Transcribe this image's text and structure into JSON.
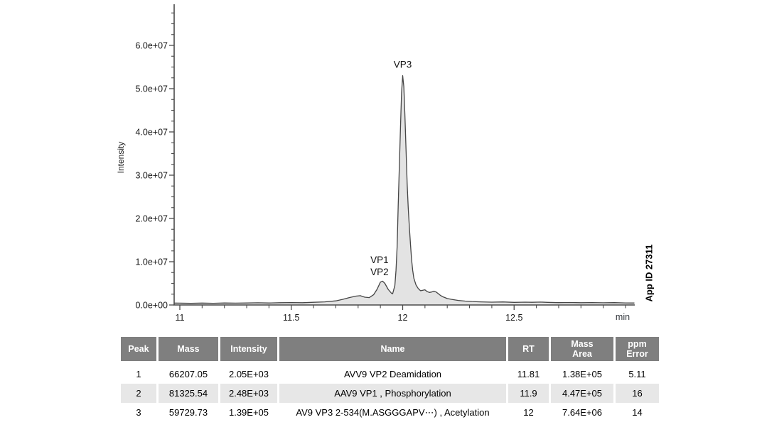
{
  "chart_data": {
    "type": "area",
    "title": "",
    "ylabel": "Intensity",
    "x_unit": "min",
    "side_label": "App ID 27311",
    "x_range": [
      11,
      13.05
    ],
    "y_range": [
      0,
      67500000.0
    ],
    "x_major_ticks": [
      11,
      11.5,
      12,
      12.5
    ],
    "x_major_labels": [
      "11",
      "11.5",
      "12",
      "12.5"
    ],
    "x_minor_step": 0.1,
    "y_major_ticks": [
      0,
      10000000.0,
      20000000.0,
      30000000.0,
      40000000.0,
      50000000.0,
      60000000.0
    ],
    "y_tick_labels": [
      "0.0e+00",
      "1.0e+07",
      "2.0e+07",
      "3.0e+07",
      "4.0e+07",
      "5.0e+07",
      "6.0e+07"
    ],
    "y_minor_step": 2500000.0,
    "grid": false,
    "legend": false,
    "colors": {
      "line": "#454545",
      "fill": "#e3e3e3",
      "axis": "#4a4a4a",
      "tick_text": "#1a1a1a"
    },
    "annotations": [
      {
        "text": "VP3",
        "x": 12.0,
        "y": 54800000.0
      },
      {
        "text": "VP1",
        "x": 11.896,
        "y": 9700000.0
      },
      {
        "text": "VP2",
        "x": 11.896,
        "y": 6900000.0
      }
    ],
    "series": [
      {
        "name": "chromatogram",
        "points": [
          [
            10.975,
            450000.0
          ],
          [
            11.0,
            420000.0
          ],
          [
            11.05,
            380000.0
          ],
          [
            11.1,
            450000.0
          ],
          [
            11.15,
            400000.0
          ],
          [
            11.2,
            460000.0
          ],
          [
            11.25,
            420000.0
          ],
          [
            11.3,
            460000.0
          ],
          [
            11.35,
            500000.0
          ],
          [
            11.4,
            460000.0
          ],
          [
            11.45,
            520000.0
          ],
          [
            11.5,
            560000.0
          ],
          [
            11.55,
            530000.0
          ],
          [
            11.6,
            620000.0
          ],
          [
            11.65,
            720000.0
          ],
          [
            11.7,
            950000.0
          ],
          [
            11.73,
            1300000.0
          ],
          [
            11.76,
            1700000.0
          ],
          [
            11.79,
            2050000.0
          ],
          [
            11.81,
            2150000.0
          ],
          [
            11.83,
            1800000.0
          ],
          [
            11.85,
            1700000.0
          ],
          [
            11.87,
            2400000.0
          ],
          [
            11.885,
            3600000.0
          ],
          [
            11.9,
            5300000.0
          ],
          [
            11.91,
            5500000.0
          ],
          [
            11.92,
            5000000.0
          ],
          [
            11.935,
            3600000.0
          ],
          [
            11.95,
            2700000.0
          ],
          [
            11.955,
            2600000.0
          ],
          [
            11.965,
            4500000.0
          ],
          [
            11.97,
            8000000.0
          ],
          [
            11.975,
            13500000.0
          ],
          [
            11.98,
            23000000.0
          ],
          [
            11.985,
            32000000.0
          ],
          [
            11.99,
            41000000.0
          ],
          [
            11.995,
            49000000.0
          ],
          [
            12.0,
            53000000.0
          ],
          [
            12.005,
            50500000.0
          ],
          [
            12.01,
            44000000.0
          ],
          [
            12.015,
            36000000.0
          ],
          [
            12.02,
            28000000.0
          ],
          [
            12.025,
            22500000.0
          ],
          [
            12.03,
            18000000.0
          ],
          [
            12.035,
            14000000.0
          ],
          [
            12.04,
            10500000.0
          ],
          [
            12.045,
            8000000.0
          ],
          [
            12.05,
            6200000.0
          ],
          [
            12.06,
            4600000.0
          ],
          [
            12.07,
            3800000.0
          ],
          [
            12.08,
            3300000.0
          ],
          [
            12.09,
            3400000.0
          ],
          [
            12.1,
            3500000.0
          ],
          [
            12.11,
            3100000.0
          ],
          [
            12.12,
            2900000.0
          ],
          [
            12.13,
            3000000.0
          ],
          [
            12.14,
            3200000.0
          ],
          [
            12.15,
            3000000.0
          ],
          [
            12.16,
            2600000.0
          ],
          [
            12.17,
            2200000.0
          ],
          [
            12.18,
            1900000.0
          ],
          [
            12.2,
            1500000.0
          ],
          [
            12.22,
            1300000.0
          ],
          [
            12.25,
            1050000.0
          ],
          [
            12.28,
            900000.0
          ],
          [
            12.31,
            800000.0
          ],
          [
            12.35,
            720000.0
          ],
          [
            12.4,
            660000.0
          ],
          [
            12.45,
            700000.0
          ],
          [
            12.5,
            600000.0
          ],
          [
            12.55,
            660000.0
          ],
          [
            12.58,
            620000.0
          ],
          [
            12.62,
            680000.0
          ],
          [
            12.65,
            600000.0
          ],
          [
            12.7,
            540000.0
          ],
          [
            12.75,
            580000.0
          ],
          [
            12.8,
            520000.0
          ],
          [
            12.85,
            560000.0
          ],
          [
            12.9,
            500000.0
          ],
          [
            12.95,
            540000.0
          ],
          [
            13.0,
            480000.0
          ],
          [
            13.04,
            460000.0
          ]
        ]
      }
    ]
  },
  "table": {
    "headers": [
      "Peak",
      "Mass",
      "Intensity",
      "Name",
      "RT",
      "Mass\nArea",
      "ppm\nError"
    ],
    "rows": [
      [
        "1",
        "66207.05",
        "2.05E+03",
        "AVV9 VP2 Deamidation",
        "11.81",
        "1.38E+05",
        "5.11"
      ],
      [
        "2",
        "81325.54",
        "2.48E+03",
        "AAV9 VP1 , Phosphorylation",
        "11.9",
        "4.47E+05",
        "16"
      ],
      [
        "3",
        "59729.73",
        "1.39E+05",
        "AV9 VP3 2-534(M.ASGGGAPV⋯) , Acetylation",
        "12",
        "7.64E+06",
        "14"
      ]
    ]
  }
}
